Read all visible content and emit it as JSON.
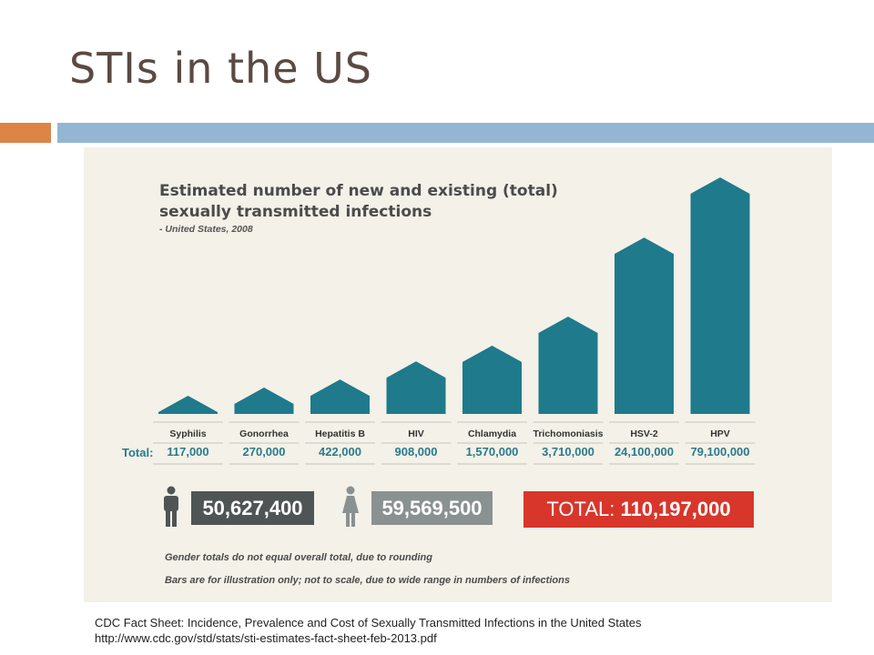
{
  "slide": {
    "title": "STIs in the US",
    "caption_line1": "CDC Fact Sheet: Incidence, Prevalence and Cost of Sexually Transmitted Infections in the United States",
    "caption_line2": "http://www.cdc.gov/std/stats/sti-estimates-fact-sheet-feb-2013.pdf",
    "colors": {
      "accent_orange": "#dd8447",
      "accent_blue": "#94b6d2",
      "bar_teal": "#1f7a8c",
      "total_red": "#d8362b"
    }
  },
  "infographic": {
    "title_line1": "Estimated number of new and existing (total)",
    "title_line2": "sexually transmitted infections",
    "subtitle": "- United States, 2008",
    "total_row_label": "Total:",
    "male_total": "50,627,400",
    "female_total": "59,569,500",
    "grand_total_prefix": "TOTAL: ",
    "grand_total_value": "110,197,000",
    "note1": "Gender totals do not equal overall total, due to rounding",
    "note2": "Bars are for illustration only; not to scale, due to wide range in numbers of infections",
    "icons": [
      "male-person-icon",
      "female-person-icon"
    ]
  },
  "chart_data": {
    "type": "bar",
    "categories": [
      "Syphilis",
      "Gonorrhea",
      "Hepatitis B",
      "HIV",
      "Chlamydia",
      "Trichomoniasis",
      "HSV-2",
      "HPV"
    ],
    "value_labels": [
      "117,000",
      "270,000",
      "422,000",
      "908,000",
      "1,570,000",
      "3,710,000",
      "24,100,000",
      "79,100,000"
    ],
    "values": [
      117000,
      270000,
      422000,
      908000,
      1570000,
      3710000,
      24100000,
      79100000
    ],
    "scaled": false
  }
}
